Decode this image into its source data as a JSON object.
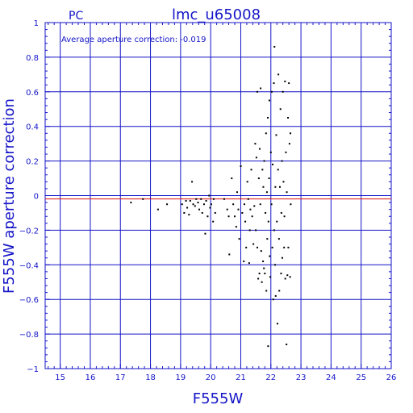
{
  "chart_data": {
    "type": "scatter",
    "title": "lmc_u65008",
    "subtitle": "PC",
    "xlabel": "F555W",
    "ylabel": "F555W aperture correction",
    "annotation": "Average aperture correction: -0.019",
    "xlim": [
      14.5,
      26
    ],
    "ylim": [
      -1,
      1
    ],
    "xticks": [
      15,
      16,
      17,
      18,
      19,
      20,
      21,
      22,
      23,
      24,
      25,
      26
    ],
    "xtick_labels": [
      "15",
      "16",
      "17",
      "18",
      "19",
      "20",
      "21",
      "22",
      "23",
      "24",
      "25",
      "26"
    ],
    "yticks": [
      -1,
      -0.8,
      -0.6,
      -0.4,
      -0.2,
      0,
      0.2,
      0.4,
      0.6,
      0.8,
      1
    ],
    "ytick_labels": [
      "−1",
      "−0.8",
      "−0.6",
      "−0.4",
      "−0.2",
      "0",
      "0.2",
      "0.4",
      "0.6",
      "0.8",
      "1"
    ],
    "grid": true,
    "average_line": -0.019,
    "colors": {
      "axes": "#1414c8",
      "grid": "#1414c8",
      "average": "#e01010",
      "points": "#000000"
    },
    "points": [
      [
        17.35,
        -0.04
      ],
      [
        17.75,
        -0.02
      ],
      [
        18.25,
        -0.08
      ],
      [
        18.55,
        -0.05
      ],
      [
        19.05,
        -0.05
      ],
      [
        19.12,
        -0.1
      ],
      [
        19.18,
        -0.03
      ],
      [
        19.22,
        -0.07
      ],
      [
        19.28,
        -0.11
      ],
      [
        19.32,
        -0.03
      ],
      [
        19.38,
        0.08
      ],
      [
        19.42,
        -0.05
      ],
      [
        19.48,
        -0.06
      ],
      [
        19.52,
        -0.02
      ],
      [
        19.58,
        -0.04
      ],
      [
        19.62,
        -0.08
      ],
      [
        19.68,
        -0.02
      ],
      [
        19.72,
        -0.1
      ],
      [
        19.78,
        -0.05
      ],
      [
        19.82,
        -0.22
      ],
      [
        19.85,
        -0.03
      ],
      [
        19.9,
        -0.12
      ],
      [
        19.95,
        0.0
      ],
      [
        19.98,
        -0.07
      ],
      [
        20.02,
        -0.05
      ],
      [
        20.08,
        -0.15
      ],
      [
        20.1,
        -0.02
      ],
      [
        20.15,
        -0.1
      ],
      [
        20.45,
        -0.02
      ],
      [
        20.55,
        -0.08
      ],
      [
        20.6,
        -0.12
      ],
      [
        20.62,
        -0.34
      ],
      [
        20.7,
        0.1
      ],
      [
        20.75,
        -0.05
      ],
      [
        20.8,
        -0.12
      ],
      [
        20.85,
        -0.18
      ],
      [
        20.88,
        0.02
      ],
      [
        20.92,
        -0.08
      ],
      [
        20.95,
        -0.25
      ],
      [
        21.0,
        0.17
      ],
      [
        21.05,
        -0.1
      ],
      [
        21.1,
        -0.38
      ],
      [
        21.12,
        -0.05
      ],
      [
        21.15,
        -0.15
      ],
      [
        21.18,
        -0.3
      ],
      [
        21.22,
        0.08
      ],
      [
        21.25,
        -0.02
      ],
      [
        21.28,
        -0.39
      ],
      [
        21.3,
        -0.2
      ],
      [
        21.32,
        -0.08
      ],
      [
        21.35,
        0.15
      ],
      [
        21.38,
        -0.12
      ],
      [
        21.42,
        -0.28
      ],
      [
        21.45,
        -0.06
      ],
      [
        21.48,
        0.3
      ],
      [
        21.5,
        -0.2
      ],
      [
        21.52,
        0.22
      ],
      [
        21.55,
        -0.3
      ],
      [
        21.55,
        0.6
      ],
      [
        21.58,
        -0.48
      ],
      [
        21.6,
        0.1
      ],
      [
        21.62,
        -0.45
      ],
      [
        21.63,
        0.27
      ],
      [
        21.65,
        -0.05
      ],
      [
        21.66,
        0.62
      ],
      [
        21.68,
        -0.32
      ],
      [
        21.7,
        -0.5
      ],
      [
        21.72,
        0.15
      ],
      [
        21.74,
        -0.38
      ],
      [
        21.75,
        0.05
      ],
      [
        21.77,
        -0.42
      ],
      [
        21.78,
        0.2
      ],
      [
        21.8,
        -0.45
      ],
      [
        21.82,
        -0.1
      ],
      [
        21.84,
        0.36
      ],
      [
        21.85,
        -0.55
      ],
      [
        21.87,
        0.02
      ],
      [
        21.88,
        -0.25
      ],
      [
        21.9,
        0.45
      ],
      [
        21.91,
        -0.87
      ],
      [
        21.92,
        -0.15
      ],
      [
        21.94,
        0.1
      ],
      [
        21.95,
        0.55
      ],
      [
        21.96,
        -0.35
      ],
      [
        21.98,
        -0.47
      ],
      [
        22.0,
        0.25
      ],
      [
        22.02,
        -0.05
      ],
      [
        22.03,
        0.6
      ],
      [
        22.05,
        -0.3
      ],
      [
        22.06,
        0.18
      ],
      [
        22.08,
        -0.6
      ],
      [
        22.1,
        0.65
      ],
      [
        22.11,
        -0.2
      ],
      [
        22.12,
        0.86
      ],
      [
        22.14,
        -0.4
      ],
      [
        22.15,
        0.05
      ],
      [
        22.16,
        -0.58
      ],
      [
        22.18,
        0.35
      ],
      [
        22.2,
        -0.15
      ],
      [
        22.22,
        -0.74
      ],
      [
        22.24,
        0.15
      ],
      [
        22.25,
        0.7
      ],
      [
        22.27,
        -0.25
      ],
      [
        22.28,
        -0.55
      ],
      [
        22.3,
        0.05
      ],
      [
        22.32,
        0.5
      ],
      [
        22.34,
        -0.45
      ],
      [
        22.35,
        -0.1
      ],
      [
        22.37,
        0.2
      ],
      [
        22.38,
        -0.36
      ],
      [
        22.4,
        0.6
      ],
      [
        22.42,
        0.08
      ],
      [
        22.44,
        -0.3
      ],
      [
        22.45,
        -0.12
      ],
      [
        22.47,
        0.66
      ],
      [
        22.48,
        -0.48
      ],
      [
        22.5,
        0.25
      ],
      [
        22.52,
        -0.86
      ],
      [
        22.53,
        0.02
      ],
      [
        22.55,
        -0.46
      ],
      [
        22.57,
        0.45
      ],
      [
        22.58,
        -0.3
      ],
      [
        22.6,
        0.65
      ],
      [
        22.62,
        0.3
      ],
      [
        22.64,
        -0.47
      ],
      [
        22.65,
        0.36
      ],
      [
        22.66,
        -0.05
      ]
    ]
  }
}
